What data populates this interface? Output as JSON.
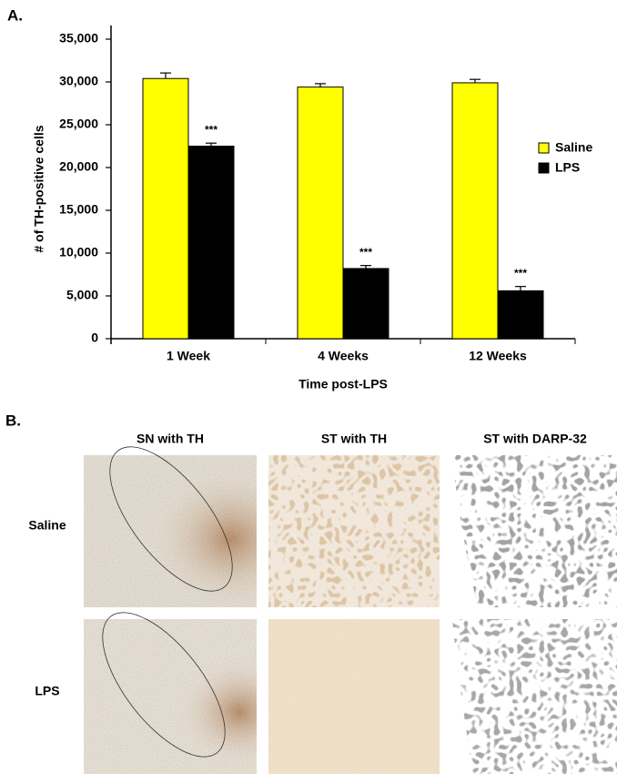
{
  "chart_data": {
    "type": "bar",
    "panel_label": "A.",
    "y_label": "# of TH-positive cells",
    "x_label": "Time post-LPS",
    "categories": [
      "1 Week",
      "4 Weeks",
      "12 Weeks"
    ],
    "series": [
      {
        "name": "Saline",
        "color": "#ffff00",
        "values": [
          30400,
          29400,
          29900
        ],
        "errors": [
          650,
          400,
          400
        ]
      },
      {
        "name": "LPS",
        "color": "#000000",
        "values": [
          22500,
          8200,
          5600
        ],
        "errors": [
          350,
          350,
          500
        ],
        "annotations": [
          "***",
          "***",
          "***"
        ]
      }
    ],
    "ylim": [
      0,
      35000
    ],
    "yticks": [
      0,
      {
        "value": 5000,
        "label": "5,000"
      },
      {
        "value": 10000,
        "label": "10,000"
      },
      {
        "value": 15000,
        "label": "15,000"
      },
      {
        "value": 20000,
        "label": "20,000"
      },
      {
        "value": 25000,
        "label": "25,000"
      },
      {
        "value": 30000,
        "label": "30,000"
      },
      {
        "value": 35000,
        "label": "35,000"
      }
    ],
    "legend": "right",
    "grid": false
  },
  "panel_b": {
    "label": "B.",
    "columns": [
      "SN with TH",
      "ST with TH",
      "ST with DARP-32"
    ],
    "rows": [
      "Saline",
      "LPS"
    ]
  }
}
